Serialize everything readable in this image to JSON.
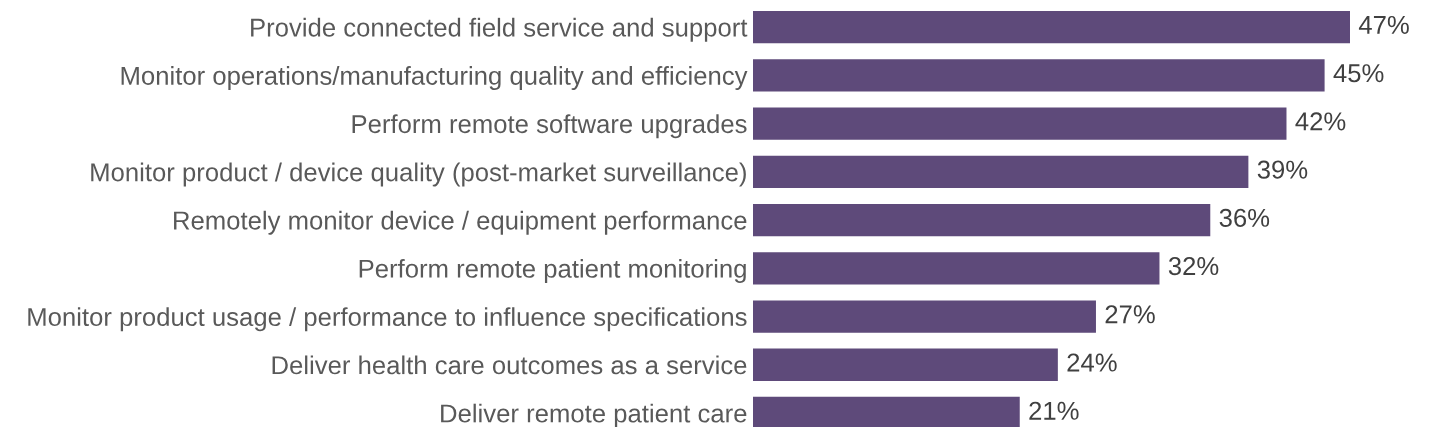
{
  "chart_data": {
    "type": "bar",
    "orientation": "horizontal",
    "categories": [
      "Provide connected field service and support",
      "Monitor operations/manufacturing quality and efficiency",
      "Perform remote software upgrades",
      "Monitor product / device quality (post-market surveillance)",
      "Remotely monitor device / equipment performance",
      "Perform remote patient monitoring",
      "Monitor product usage / performance to influence specifications",
      "Deliver health care outcomes as a service",
      "Deliver remote patient care"
    ],
    "values": [
      47,
      45,
      42,
      39,
      36,
      32,
      27,
      24,
      21
    ],
    "color": "#5e4a7a",
    "data_labels": true,
    "value_labels": [
      "47%",
      "45%",
      "42%",
      "39%",
      "36%",
      "32%",
      "27%",
      "24%",
      "21%"
    ],
    "tick_labels": "y",
    "grid": false,
    "legend": false
  }
}
